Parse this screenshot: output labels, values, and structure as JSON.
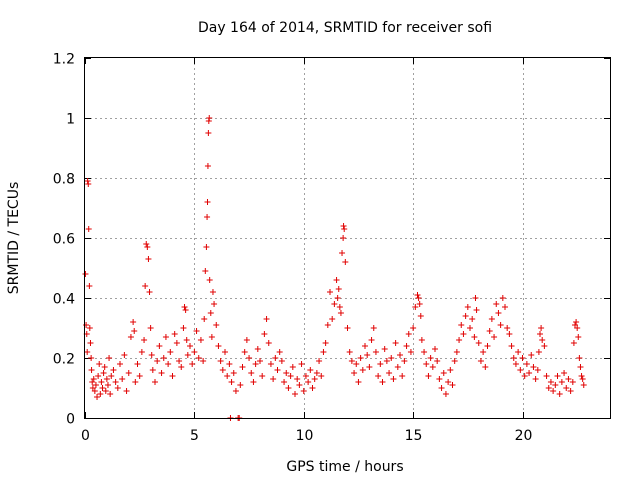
{
  "chart_data": {
    "type": "scatter",
    "title": "Day 164 of 2014, SRMTID for receiver sofi",
    "xlabel": "GPS time / hours",
    "ylabel": "SRMTID / TECUs",
    "xlim": [
      0,
      24
    ],
    "ylim": [
      0,
      1.2
    ],
    "grid": true,
    "marker": "+",
    "series_color": "#e00000",
    "x_ticks": [
      {
        "value": 0,
        "label": "0"
      },
      {
        "value": 5,
        "label": "5"
      },
      {
        "value": 10,
        "label": "10"
      },
      {
        "value": 15,
        "label": "15"
      },
      {
        "value": 20,
        "label": "20"
      }
    ],
    "y_ticks": [
      {
        "value": 0,
        "label": "0"
      },
      {
        "value": 0.2,
        "label": "0.2"
      },
      {
        "value": 0.4,
        "label": "0.4"
      },
      {
        "value": 0.6,
        "label": "0.6"
      },
      {
        "value": 0.8,
        "label": "0.8"
      },
      {
        "value": 1.0,
        "label": "1"
      },
      {
        "value": 1.2,
        "label": "1.2"
      }
    ],
    "points": [
      [
        0.02,
        0.48
      ],
      [
        0.05,
        0.31
      ],
      [
        0.08,
        0.28
      ],
      [
        0.1,
        0.22
      ],
      [
        0.12,
        0.79
      ],
      [
        0.15,
        0.78
      ],
      [
        0.17,
        0.63
      ],
      [
        0.2,
        0.44
      ],
      [
        0.22,
        0.3
      ],
      [
        0.25,
        0.25
      ],
      [
        0.28,
        0.2
      ],
      [
        0.3,
        0.16
      ],
      [
        0.33,
        0.12
      ],
      [
        0.36,
        0.1
      ],
      [
        0.4,
        0.13
      ],
      [
        0.45,
        0.09
      ],
      [
        0.5,
        0.11
      ],
      [
        0.55,
        0.07
      ],
      [
        0.6,
        0.14
      ],
      [
        0.65,
        0.18
      ],
      [
        0.7,
        0.08
      ],
      [
        0.75,
        0.12
      ],
      [
        0.8,
        0.1
      ],
      [
        0.85,
        0.15
      ],
      [
        0.9,
        0.17
      ],
      [
        0.95,
        0.09
      ],
      [
        1.0,
        0.13
      ],
      [
        1.05,
        0.11
      ],
      [
        1.1,
        0.2
      ],
      [
        1.15,
        0.08
      ],
      [
        1.2,
        0.14
      ],
      [
        1.3,
        0.16
      ],
      [
        1.4,
        0.12
      ],
      [
        1.5,
        0.1
      ],
      [
        1.6,
        0.18
      ],
      [
        1.7,
        0.13
      ],
      [
        1.8,
        0.21
      ],
      [
        1.9,
        0.09
      ],
      [
        2.0,
        0.15
      ],
      [
        2.1,
        0.27
      ],
      [
        2.2,
        0.32
      ],
      [
        2.25,
        0.29
      ],
      [
        2.3,
        0.12
      ],
      [
        2.4,
        0.18
      ],
      [
        2.5,
        0.14
      ],
      [
        2.6,
        0.22
      ],
      [
        2.7,
        0.26
      ],
      [
        2.75,
        0.44
      ],
      [
        2.8,
        0.58
      ],
      [
        2.85,
        0.57
      ],
      [
        2.9,
        0.53
      ],
      [
        2.95,
        0.42
      ],
      [
        3.0,
        0.3
      ],
      [
        3.05,
        0.21
      ],
      [
        3.1,
        0.16
      ],
      [
        3.2,
        0.12
      ],
      [
        3.3,
        0.19
      ],
      [
        3.4,
        0.24
      ],
      [
        3.5,
        0.15
      ],
      [
        3.6,
        0.2
      ],
      [
        3.7,
        0.27
      ],
      [
        3.8,
        0.18
      ],
      [
        3.9,
        0.22
      ],
      [
        4.0,
        0.14
      ],
      [
        4.1,
        0.28
      ],
      [
        4.2,
        0.25
      ],
      [
        4.3,
        0.19
      ],
      [
        4.4,
        0.17
      ],
      [
        4.5,
        0.3
      ],
      [
        4.55,
        0.37
      ],
      [
        4.6,
        0.36
      ],
      [
        4.65,
        0.26
      ],
      [
        4.7,
        0.21
      ],
      [
        4.8,
        0.24
      ],
      [
        4.9,
        0.18
      ],
      [
        5.0,
        0.22
      ],
      [
        5.1,
        0.29
      ],
      [
        5.2,
        0.2
      ],
      [
        5.3,
        0.26
      ],
      [
        5.4,
        0.19
      ],
      [
        5.45,
        0.33
      ],
      [
        5.5,
        0.49
      ],
      [
        5.55,
        0.57
      ],
      [
        5.58,
        0.67
      ],
      [
        5.6,
        0.72
      ],
      [
        5.62,
        0.84
      ],
      [
        5.64,
        0.95
      ],
      [
        5.66,
        0.99
      ],
      [
        5.68,
        1.0
      ],
      [
        5.7,
        0.46
      ],
      [
        5.75,
        0.35
      ],
      [
        5.8,
        0.27
      ],
      [
        5.85,
        0.42
      ],
      [
        5.9,
        0.38
      ],
      [
        6.0,
        0.31
      ],
      [
        6.1,
        0.24
      ],
      [
        6.2,
        0.19
      ],
      [
        6.3,
        0.16
      ],
      [
        6.4,
        0.22
      ],
      [
        6.5,
        0.14
      ],
      [
        6.6,
        0.18
      ],
      [
        6.65,
        0.0
      ],
      [
        6.7,
        0.12
      ],
      [
        6.8,
        0.15
      ],
      [
        6.9,
        0.09
      ],
      [
        7.0,
        0.0
      ],
      [
        7.05,
        0.0
      ],
      [
        7.1,
        0.11
      ],
      [
        7.2,
        0.17
      ],
      [
        7.3,
        0.22
      ],
      [
        7.4,
        0.26
      ],
      [
        7.5,
        0.2
      ],
      [
        7.6,
        0.15
      ],
      [
        7.7,
        0.12
      ],
      [
        7.8,
        0.18
      ],
      [
        7.9,
        0.23
      ],
      [
        8.0,
        0.19
      ],
      [
        8.1,
        0.14
      ],
      [
        8.2,
        0.28
      ],
      [
        8.3,
        0.33
      ],
      [
        8.4,
        0.25
      ],
      [
        8.5,
        0.18
      ],
      [
        8.6,
        0.13
      ],
      [
        8.7,
        0.2
      ],
      [
        8.8,
        0.16
      ],
      [
        8.9,
        0.22
      ],
      [
        9.0,
        0.19
      ],
      [
        9.1,
        0.12
      ],
      [
        9.2,
        0.15
      ],
      [
        9.3,
        0.1
      ],
      [
        9.4,
        0.14
      ],
      [
        9.5,
        0.17
      ],
      [
        9.6,
        0.08
      ],
      [
        9.7,
        0.13
      ],
      [
        9.8,
        0.11
      ],
      [
        9.9,
        0.18
      ],
      [
        10.0,
        0.09
      ],
      [
        10.1,
        0.14
      ],
      [
        10.2,
        0.12
      ],
      [
        10.3,
        0.16
      ],
      [
        10.4,
        0.1
      ],
      [
        10.5,
        0.13
      ],
      [
        10.6,
        0.15
      ],
      [
        10.7,
        0.19
      ],
      [
        10.8,
        0.14
      ],
      [
        10.9,
        0.22
      ],
      [
        11.0,
        0.25
      ],
      [
        11.1,
        0.31
      ],
      [
        11.2,
        0.42
      ],
      [
        11.3,
        0.33
      ],
      [
        11.4,
        0.38
      ],
      [
        11.5,
        0.46
      ],
      [
        11.55,
        0.4
      ],
      [
        11.6,
        0.43
      ],
      [
        11.65,
        0.37
      ],
      [
        11.7,
        0.35
      ],
      [
        11.75,
        0.55
      ],
      [
        11.8,
        0.6
      ],
      [
        11.82,
        0.64
      ],
      [
        11.85,
        0.63
      ],
      [
        11.9,
        0.52
      ],
      [
        12.0,
        0.3
      ],
      [
        12.1,
        0.22
      ],
      [
        12.2,
        0.19
      ],
      [
        12.3,
        0.15
      ],
      [
        12.4,
        0.18
      ],
      [
        12.5,
        0.12
      ],
      [
        12.6,
        0.2
      ],
      [
        12.7,
        0.16
      ],
      [
        12.8,
        0.24
      ],
      [
        12.9,
        0.21
      ],
      [
        13.0,
        0.17
      ],
      [
        13.1,
        0.26
      ],
      [
        13.2,
        0.3
      ],
      [
        13.3,
        0.22
      ],
      [
        13.4,
        0.14
      ],
      [
        13.5,
        0.18
      ],
      [
        13.6,
        0.12
      ],
      [
        13.7,
        0.23
      ],
      [
        13.8,
        0.19
      ],
      [
        13.9,
        0.15
      ],
      [
        14.0,
        0.2
      ],
      [
        14.1,
        0.13
      ],
      [
        14.2,
        0.25
      ],
      [
        14.3,
        0.17
      ],
      [
        14.4,
        0.21
      ],
      [
        14.5,
        0.14
      ],
      [
        14.6,
        0.19
      ],
      [
        14.7,
        0.24
      ],
      [
        14.8,
        0.28
      ],
      [
        14.9,
        0.22
      ],
      [
        15.0,
        0.3
      ],
      [
        15.1,
        0.37
      ],
      [
        15.2,
        0.41
      ],
      [
        15.25,
        0.4
      ],
      [
        15.3,
        0.38
      ],
      [
        15.35,
        0.34
      ],
      [
        15.4,
        0.26
      ],
      [
        15.5,
        0.22
      ],
      [
        15.6,
        0.18
      ],
      [
        15.7,
        0.14
      ],
      [
        15.8,
        0.2
      ],
      [
        15.9,
        0.17
      ],
      [
        16.0,
        0.23
      ],
      [
        16.1,
        0.19
      ],
      [
        16.2,
        0.13
      ],
      [
        16.3,
        0.1
      ],
      [
        16.4,
        0.15
      ],
      [
        16.5,
        0.08
      ],
      [
        16.6,
        0.12
      ],
      [
        16.7,
        0.16
      ],
      [
        16.8,
        0.11
      ],
      [
        16.9,
        0.19
      ],
      [
        17.0,
        0.22
      ],
      [
        17.1,
        0.26
      ],
      [
        17.2,
        0.31
      ],
      [
        17.3,
        0.28
      ],
      [
        17.4,
        0.34
      ],
      [
        17.5,
        0.37
      ],
      [
        17.6,
        0.3
      ],
      [
        17.7,
        0.33
      ],
      [
        17.8,
        0.27
      ],
      [
        17.85,
        0.4
      ],
      [
        17.9,
        0.36
      ],
      [
        18.0,
        0.25
      ],
      [
        18.1,
        0.19
      ],
      [
        18.2,
        0.22
      ],
      [
        18.3,
        0.17
      ],
      [
        18.4,
        0.24
      ],
      [
        18.5,
        0.29
      ],
      [
        18.6,
        0.33
      ],
      [
        18.7,
        0.27
      ],
      [
        18.8,
        0.38
      ],
      [
        18.9,
        0.35
      ],
      [
        19.0,
        0.31
      ],
      [
        19.1,
        0.4
      ],
      [
        19.2,
        0.37
      ],
      [
        19.3,
        0.3
      ],
      [
        19.4,
        0.28
      ],
      [
        19.5,
        0.24
      ],
      [
        19.6,
        0.2
      ],
      [
        19.7,
        0.18
      ],
      [
        19.8,
        0.22
      ],
      [
        19.9,
        0.16
      ],
      [
        20.0,
        0.2
      ],
      [
        20.1,
        0.14
      ],
      [
        20.2,
        0.18
      ],
      [
        20.3,
        0.15
      ],
      [
        20.4,
        0.21
      ],
      [
        20.5,
        0.17
      ],
      [
        20.6,
        0.13
      ],
      [
        20.7,
        0.16
      ],
      [
        20.75,
        0.22
      ],
      [
        20.8,
        0.28
      ],
      [
        20.85,
        0.3
      ],
      [
        20.9,
        0.26
      ],
      [
        21.0,
        0.24
      ],
      [
        21.1,
        0.14
      ],
      [
        21.2,
        0.1
      ],
      [
        21.3,
        0.12
      ],
      [
        21.4,
        0.09
      ],
      [
        21.5,
        0.11
      ],
      [
        21.6,
        0.14
      ],
      [
        21.7,
        0.08
      ],
      [
        21.8,
        0.12
      ],
      [
        21.9,
        0.15
      ],
      [
        22.0,
        0.1
      ],
      [
        22.1,
        0.13
      ],
      [
        22.2,
        0.09
      ],
      [
        22.3,
        0.12
      ],
      [
        22.35,
        0.25
      ],
      [
        22.4,
        0.31
      ],
      [
        22.45,
        0.32
      ],
      [
        22.5,
        0.3
      ],
      [
        22.55,
        0.27
      ],
      [
        22.6,
        0.2
      ],
      [
        22.65,
        0.17
      ],
      [
        22.7,
        0.14
      ],
      [
        22.75,
        0.13
      ],
      [
        22.8,
        0.11
      ]
    ]
  }
}
